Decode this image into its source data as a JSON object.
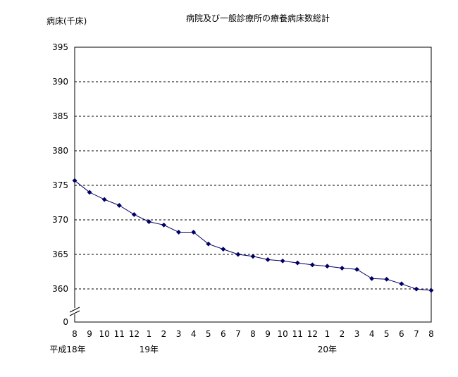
{
  "chart_data": {
    "type": "line",
    "title": "病院及び一般診療所の療養病床数総計",
    "ylabel": "病床(千床)",
    "xlabel": "",
    "ylim": [
      355,
      395
    ],
    "y_break": true,
    "y_ticks": [
      395,
      390,
      385,
      380,
      375,
      370,
      365,
      360,
      0
    ],
    "grid": "horizontal-dashed",
    "legend": "none",
    "categories": [
      "8",
      "9",
      "10",
      "11",
      "12",
      "1",
      "2",
      "3",
      "4",
      "5",
      "6",
      "7",
      "8",
      "9",
      "10",
      "11",
      "12",
      "1",
      "2",
      "3",
      "4",
      "5",
      "6",
      "7",
      "8"
    ],
    "era_labels": [
      {
        "index": 0,
        "label": "平成18年"
      },
      {
        "index": 5,
        "label": "19年"
      },
      {
        "index": 17,
        "label": "20年"
      }
    ],
    "series": [
      {
        "values": [
          374.6,
          372.8,
          371.7,
          370.8,
          369.4,
          368.3,
          367.8,
          366.7,
          366.7,
          364.9,
          364.1,
          363.3,
          363.0,
          362.5,
          362.3,
          362.0,
          361.7,
          361.5,
          361.2,
          361.0,
          359.6,
          359.5,
          358.8,
          358.0,
          357.8
        ],
        "color": "#000066"
      }
    ]
  }
}
